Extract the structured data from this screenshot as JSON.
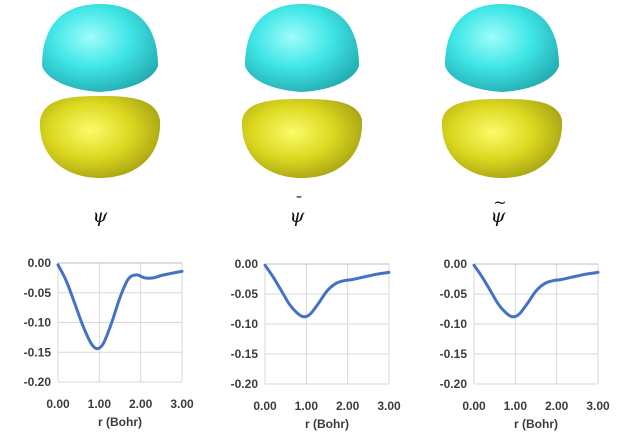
{
  "colors": {
    "positive_lobe": "#40e6e6",
    "negative_lobe": "#dcd820",
    "line": "#4472c4",
    "grid": "#d9d9d9",
    "axis": "#bfbfbf",
    "text": "#3c3c3c"
  },
  "panels": [
    {
      "symbol": "ψ",
      "accent": "",
      "icon": "orbital-isosurface"
    },
    {
      "symbol": "ψ",
      "accent": "¯",
      "icon": "orbital-isosurface"
    },
    {
      "symbol": "ψ",
      "accent": "~",
      "icon": "orbital-isosurface"
    }
  ],
  "chart_data": [
    {
      "type": "line",
      "title": "",
      "xlabel": "r (Bohr)",
      "ylabel": "",
      "xlim": [
        0,
        3
      ],
      "ylim": [
        -0.2,
        0
      ],
      "xticks": [
        "0.00",
        "1.00",
        "2.00",
        "3.00"
      ],
      "yticks": [
        "0.00",
        "-0.05",
        "-0.10",
        "-0.15",
        "-0.20"
      ],
      "grid": true,
      "series": [
        {
          "x": [
            0,
            0.2,
            0.4,
            0.6,
            0.8,
            0.95,
            1.1,
            1.3,
            1.5,
            1.7,
            1.9,
            2.1,
            2.3,
            2.5,
            2.7,
            3.0
          ],
          "y": [
            -0.003,
            -0.03,
            -0.067,
            -0.105,
            -0.135,
            -0.144,
            -0.135,
            -0.1,
            -0.058,
            -0.027,
            -0.02,
            -0.025,
            -0.025,
            -0.021,
            -0.018,
            -0.014
          ]
        }
      ]
    },
    {
      "type": "line",
      "title": "",
      "xlabel": "r (Bohr)",
      "ylabel": "",
      "xlim": [
        0,
        3
      ],
      "ylim": [
        -0.2,
        0
      ],
      "xticks": [
        "0.00",
        "1.00",
        "2.00",
        "3.00"
      ],
      "yticks": [
        "0.00",
        "-0.05",
        "-0.10",
        "-0.15",
        "-0.20"
      ],
      "grid": true,
      "series": [
        {
          "x": [
            0,
            0.2,
            0.4,
            0.6,
            0.8,
            0.95,
            1.1,
            1.3,
            1.5,
            1.7,
            1.9,
            2.1,
            2.3,
            2.5,
            2.7,
            3.0
          ],
          "y": [
            -0.002,
            -0.022,
            -0.045,
            -0.068,
            -0.083,
            -0.088,
            -0.083,
            -0.065,
            -0.045,
            -0.033,
            -0.028,
            -0.026,
            -0.023,
            -0.02,
            -0.017,
            -0.014
          ]
        }
      ]
    },
    {
      "type": "line",
      "title": "",
      "xlabel": "r (Bohr)",
      "ylabel": "",
      "xlim": [
        0,
        3
      ],
      "ylim": [
        -0.2,
        0
      ],
      "xticks": [
        "0.00",
        "1.00",
        "2.00",
        "3.00"
      ],
      "yticks": [
        "0.00",
        "-0.05",
        "-0.10",
        "-0.15",
        "-0.20"
      ],
      "grid": true,
      "series": [
        {
          "x": [
            0,
            0.2,
            0.4,
            0.6,
            0.8,
            0.95,
            1.1,
            1.3,
            1.5,
            1.7,
            1.9,
            2.1,
            2.3,
            2.5,
            2.7,
            3.0
          ],
          "y": [
            -0.002,
            -0.022,
            -0.045,
            -0.068,
            -0.083,
            -0.088,
            -0.083,
            -0.065,
            -0.045,
            -0.033,
            -0.028,
            -0.026,
            -0.023,
            -0.02,
            -0.017,
            -0.014
          ]
        }
      ]
    }
  ]
}
